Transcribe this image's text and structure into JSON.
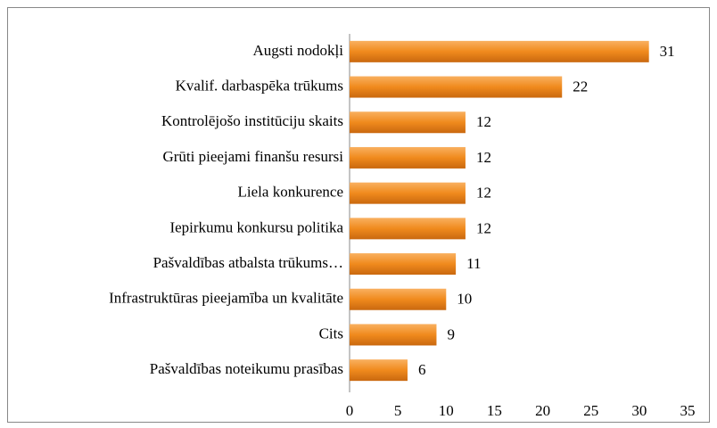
{
  "chart_data": {
    "type": "barh",
    "categories": [
      "Augsti nodokļi",
      "Kvalif. darbaspēka trūkums",
      "Kontrolējošo institūciju skaits",
      "Grūti pieejami finanšu resursi",
      "Liela konkurence",
      "Iepirkumu konkursu politika",
      "Pašvaldības atbalsta trūkums…",
      "Infrastruktūras pieejamība un kvalitāte",
      "Cits",
      "Pašvaldības noteikumu prasības"
    ],
    "values": [
      31,
      22,
      12,
      12,
      12,
      12,
      11,
      10,
      9,
      6
    ],
    "color": "#f08a1d",
    "xlim": [
      0,
      35
    ],
    "xticks": [
      0,
      5,
      10,
      15,
      20,
      25,
      30,
      35
    ],
    "grid": false
  }
}
